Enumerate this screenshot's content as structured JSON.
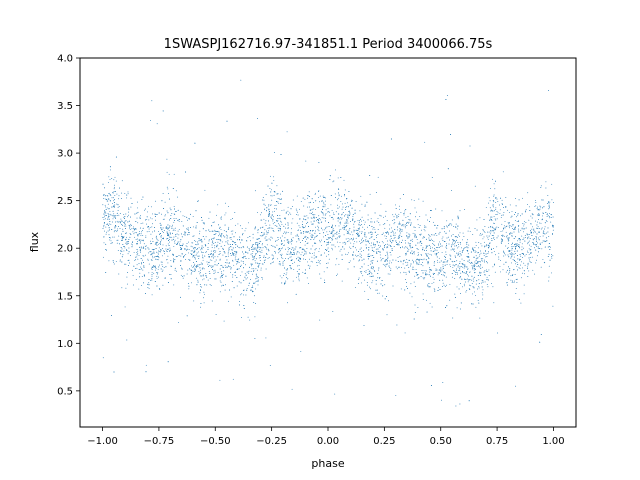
{
  "chart_data": {
    "type": "scatter",
    "title": "1SWASPJ162716.97-341851.1 Period 3400066.75s",
    "xlabel": "phase",
    "ylabel": "flux",
    "xlim": [
      -1.1,
      1.1
    ],
    "ylim": [
      0.12,
      4.0
    ],
    "xticks": [
      -1.0,
      -0.75,
      -0.5,
      -0.25,
      0.0,
      0.25,
      0.5,
      0.75,
      1.0
    ],
    "xtick_labels": [
      "−1.00",
      "−0.75",
      "−0.50",
      "−0.25",
      "0.00",
      "0.25",
      "0.50",
      "0.75",
      "1.00"
    ],
    "yticks": [
      0.5,
      1.0,
      1.5,
      2.0,
      2.5,
      3.0,
      3.5,
      4.0
    ],
    "ytick_labels": [
      "0.5",
      "1.0",
      "1.5",
      "2.0",
      "2.5",
      "3.0",
      "3.5",
      "4.0"
    ],
    "grid": false,
    "point_color": "#1f77b4",
    "series": [
      {
        "profile_x": [
          -1.0,
          -0.95,
          -0.9,
          -0.85,
          -0.8,
          -0.75,
          -0.7,
          -0.65,
          -0.6,
          -0.55,
          -0.5,
          -0.45,
          -0.4,
          -0.35,
          -0.3,
          -0.25,
          -0.2,
          -0.15,
          -0.1,
          -0.05,
          0.0,
          0.05,
          0.1,
          0.15,
          0.2,
          0.25,
          0.3,
          0.35,
          0.4,
          0.45,
          0.5,
          0.55,
          0.6,
          0.65,
          0.7,
          0.75,
          0.8,
          0.85,
          0.9,
          0.95,
          1.0
        ],
        "profile_y": [
          2.3,
          2.35,
          2.15,
          2.05,
          1.95,
          2.0,
          2.15,
          2.05,
          1.95,
          1.9,
          1.92,
          1.95,
          1.85,
          1.8,
          1.95,
          2.3,
          2.05,
          1.95,
          2.15,
          2.2,
          2.2,
          2.3,
          2.15,
          2.05,
          1.95,
          2.0,
          2.15,
          2.05,
          1.95,
          1.9,
          1.92,
          1.95,
          1.85,
          1.8,
          1.95,
          2.3,
          2.05,
          1.95,
          2.15,
          2.2,
          2.2
        ],
        "scatter": 0.22,
        "point_count": 5200
      }
    ]
  }
}
